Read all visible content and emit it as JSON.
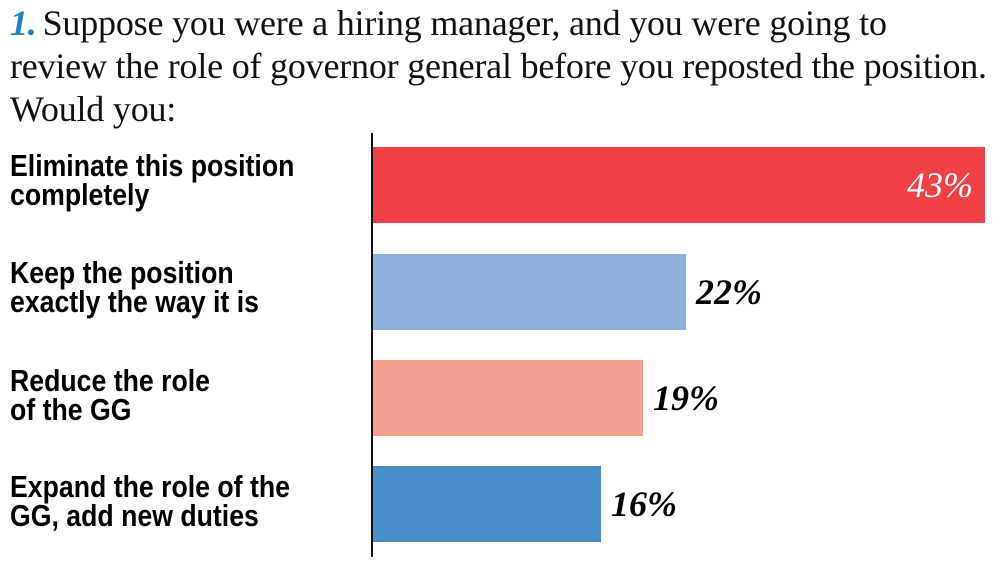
{
  "question": {
    "number": "1.",
    "text": "Suppose you were a hiring manager, and you were going to review the role of governor general before you reposted the position. Would you:",
    "number_color": "#1f7fc4"
  },
  "bars": [
    {
      "label_line1": "Eliminate this position",
      "label_line2": "completely",
      "value": 43,
      "display": "43%",
      "color": "#ef4044",
      "label_inside": true
    },
    {
      "label_line1": "Keep the position",
      "label_line2": "exactly the way it is",
      "value": 22,
      "display": "22%",
      "color": "#8db0dd",
      "label_inside": false
    },
    {
      "label_line1": "Reduce the role",
      "label_line2": "of the GG",
      "value": 19,
      "display": "19%",
      "color": "#f5a192",
      "label_inside": false
    },
    {
      "label_line1": "Expand the role of the",
      "label_line2": "GG, add new duties",
      "value": 16,
      "display": "16%",
      "color": "#4a8fcc",
      "label_inside": false
    }
  ],
  "chart_data": {
    "type": "bar",
    "orientation": "horizontal",
    "title": "1. Suppose you were a hiring manager, and you were going to review the role of governor general before you reposted the position. Would you:",
    "categories": [
      "Eliminate this position completely",
      "Keep the position exactly the way it is",
      "Reduce the role of the GG",
      "Expand the role of the GG, add new duties"
    ],
    "values": [
      43,
      22,
      19,
      16
    ],
    "unit": "%",
    "colors": [
      "#ef4044",
      "#8db0dd",
      "#f5a192",
      "#4a8fcc"
    ],
    "xlabel": "",
    "ylabel": "",
    "grid": false,
    "legend": false
  }
}
